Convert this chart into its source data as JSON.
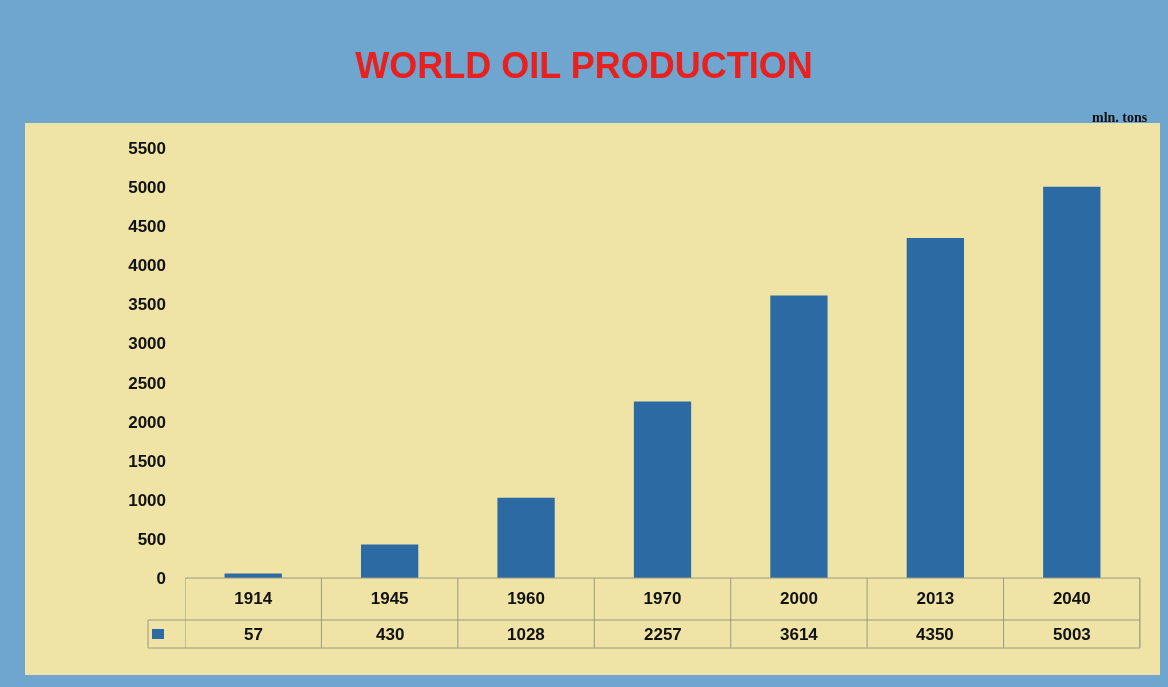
{
  "chart_data": {
    "type": "bar",
    "title": "WORLD OIL PRODUCTION",
    "ylabel": "mln. tons",
    "categories": [
      "1914",
      "1945",
      "1960",
      "1970",
      "2000",
      "2013",
      "2040"
    ],
    "series": [
      {
        "color": "#2c6aa3",
        "values": [
          57,
          430,
          1028,
          2257,
          3614,
          4350,
          5003
        ]
      }
    ],
    "ylim": [
      0,
      5500
    ],
    "yticks": [
      0,
      500,
      1000,
      1500,
      2000,
      2500,
      3000,
      3500,
      4000,
      4500,
      5000,
      5500
    ],
    "grid": false,
    "data_labels": true
  }
}
